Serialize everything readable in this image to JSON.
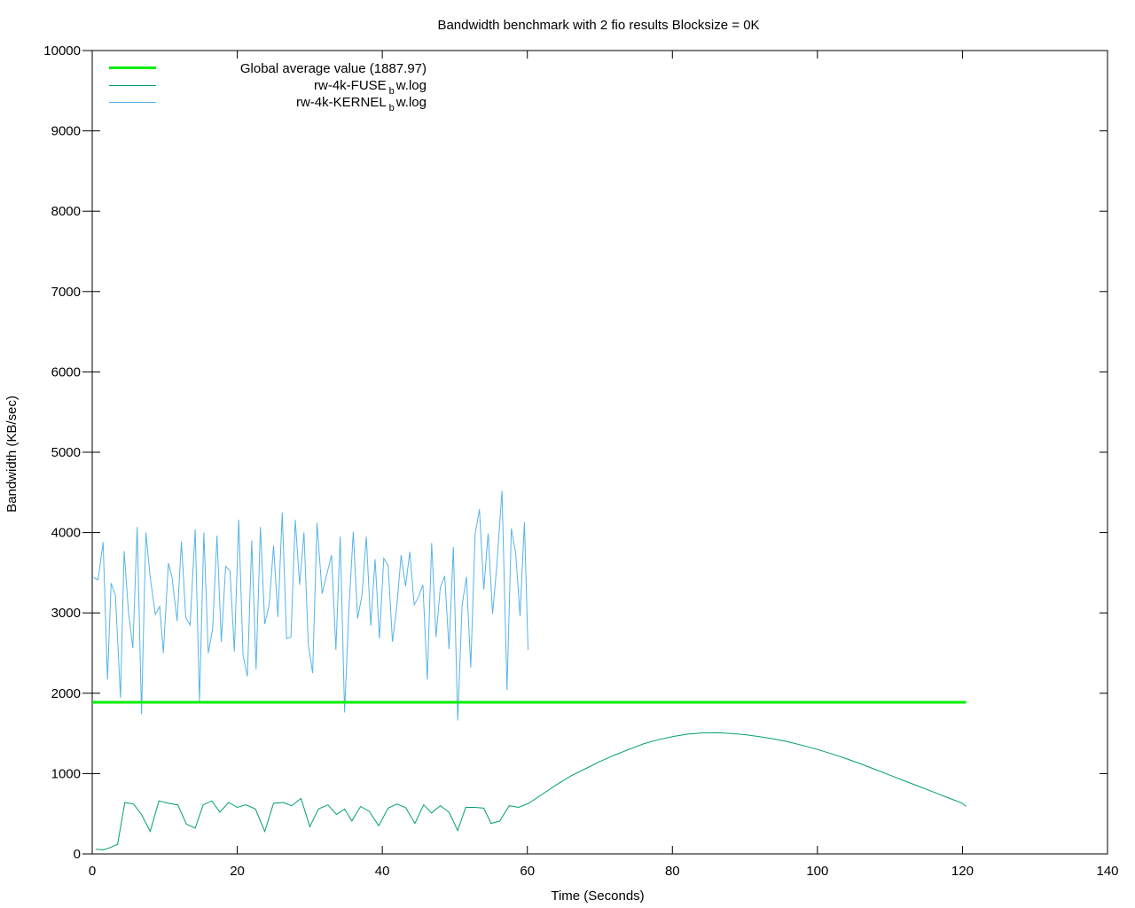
{
  "chart_data": {
    "type": "line",
    "title": "Bandwidth benchmark with 2 fio results Blocksize = 0K",
    "xlabel": "Time (Seconds)",
    "ylabel": "Bandwidth (KB/sec)",
    "xlim": [
      0,
      140
    ],
    "ylim": [
      0,
      10000
    ],
    "x_ticks": [
      0,
      20,
      40,
      60,
      80,
      100,
      120,
      140
    ],
    "y_ticks": [
      0,
      1000,
      2000,
      3000,
      4000,
      5000,
      6000,
      7000,
      8000,
      9000,
      10000
    ],
    "grid": false,
    "legend_position": "top-left",
    "colors": {
      "average": "#00ee00",
      "fuse": "#009e73",
      "kernel": "#56b4e9"
    },
    "average": {
      "label": "Global average value (1887.97)",
      "value": 1887.97,
      "x_range": [
        0,
        120.5
      ]
    },
    "series": [
      {
        "name": "rw-4k-FUSE",
        "name_sub": "b",
        "name_suffix": "w.log",
        "color": "#009e73",
        "points": [
          [
            0.5,
            60
          ],
          [
            1.5,
            50
          ],
          [
            2.5,
            80
          ],
          [
            3.5,
            120
          ],
          [
            4.5,
            640
          ],
          [
            5.7,
            620
          ],
          [
            6.8,
            490
          ],
          [
            8,
            280
          ],
          [
            9.2,
            660
          ],
          [
            10.5,
            630
          ],
          [
            11.8,
            610
          ],
          [
            13,
            370
          ],
          [
            14.2,
            320
          ],
          [
            15.3,
            610
          ],
          [
            16.5,
            660
          ],
          [
            17.6,
            520
          ],
          [
            18.8,
            640
          ],
          [
            20,
            580
          ],
          [
            21.2,
            610
          ],
          [
            22.5,
            560
          ],
          [
            23.8,
            280
          ],
          [
            25,
            630
          ],
          [
            26.3,
            640
          ],
          [
            27.5,
            600
          ],
          [
            28.8,
            690
          ],
          [
            30,
            340
          ],
          [
            31.2,
            560
          ],
          [
            32.5,
            610
          ],
          [
            33.7,
            490
          ],
          [
            34.8,
            560
          ],
          [
            35.8,
            410
          ],
          [
            37,
            590
          ],
          [
            38.2,
            530
          ],
          [
            39.5,
            350
          ],
          [
            40.8,
            570
          ],
          [
            42,
            620
          ],
          [
            43.2,
            580
          ],
          [
            44.5,
            380
          ],
          [
            45.7,
            610
          ],
          [
            46.8,
            510
          ],
          [
            48,
            600
          ],
          [
            49.2,
            520
          ],
          [
            50.4,
            290
          ],
          [
            51.5,
            580
          ],
          [
            52.8,
            580
          ],
          [
            54,
            570
          ],
          [
            55,
            380
          ],
          [
            56.2,
            410
          ],
          [
            57.5,
            600
          ],
          [
            58.8,
            580
          ],
          [
            60.2,
            630
          ],
          [
            62,
            740
          ],
          [
            64,
            860
          ],
          [
            66,
            970
          ],
          [
            68,
            1060
          ],
          [
            70,
            1150
          ],
          [
            72,
            1230
          ],
          [
            74,
            1300
          ],
          [
            76,
            1370
          ],
          [
            78,
            1420
          ],
          [
            80,
            1460
          ],
          [
            82,
            1490
          ],
          [
            84,
            1505
          ],
          [
            86,
            1510
          ],
          [
            88,
            1500
          ],
          [
            90,
            1485
          ],
          [
            92,
            1460
          ],
          [
            94,
            1430
          ],
          [
            96,
            1395
          ],
          [
            98,
            1350
          ],
          [
            100,
            1300
          ],
          [
            102,
            1245
          ],
          [
            104,
            1185
          ],
          [
            106,
            1120
          ],
          [
            108,
            1050
          ],
          [
            110,
            980
          ],
          [
            112,
            910
          ],
          [
            114,
            840
          ],
          [
            116,
            770
          ],
          [
            118,
            700
          ],
          [
            120,
            630
          ],
          [
            120.5,
            590
          ]
        ]
      },
      {
        "name": "rw-4k-KERNEL",
        "name_sub": "b",
        "name_suffix": "w.log",
        "color": "#56b4e9",
        "points": [
          [
            0.2,
            3440
          ],
          [
            0.8,
            3410
          ],
          [
            1.5,
            3880
          ],
          [
            2.1,
            2170
          ],
          [
            2.6,
            3370
          ],
          [
            3.2,
            3220
          ],
          [
            3.9,
            1940
          ],
          [
            4.4,
            3770
          ],
          [
            5,
            3010
          ],
          [
            5.6,
            2560
          ],
          [
            6.2,
            4070
          ],
          [
            6.8,
            1740
          ],
          [
            7.4,
            4000
          ],
          [
            8,
            3440
          ],
          [
            8.7,
            2980
          ],
          [
            9.3,
            3080
          ],
          [
            9.8,
            2500
          ],
          [
            10.5,
            3620
          ],
          [
            11,
            3440
          ],
          [
            11.7,
            2900
          ],
          [
            12.3,
            3890
          ],
          [
            12.9,
            2940
          ],
          [
            13.5,
            2850
          ],
          [
            14.2,
            4040
          ],
          [
            14.8,
            1900
          ],
          [
            15.4,
            4000
          ],
          [
            16,
            2500
          ],
          [
            16.6,
            2800
          ],
          [
            17.2,
            3960
          ],
          [
            17.8,
            2640
          ],
          [
            18.4,
            3580
          ],
          [
            19,
            3520
          ],
          [
            19.6,
            2520
          ],
          [
            20.2,
            4160
          ],
          [
            20.8,
            2470
          ],
          [
            21.4,
            2210
          ],
          [
            22,
            3900
          ],
          [
            22.6,
            2300
          ],
          [
            23.2,
            4070
          ],
          [
            23.8,
            2860
          ],
          [
            24.4,
            3100
          ],
          [
            25,
            3840
          ],
          [
            25.6,
            2950
          ],
          [
            26.2,
            4250
          ],
          [
            26.8,
            2680
          ],
          [
            27.4,
            2700
          ],
          [
            28,
            4160
          ],
          [
            28.6,
            3350
          ],
          [
            29.2,
            4000
          ],
          [
            29.8,
            2610
          ],
          [
            30.4,
            2250
          ],
          [
            31,
            4120
          ],
          [
            31.7,
            3240
          ],
          [
            32.4,
            3500
          ],
          [
            33,
            3720
          ],
          [
            33.6,
            2540
          ],
          [
            34.2,
            3950
          ],
          [
            34.8,
            1760
          ],
          [
            35.4,
            3050
          ],
          [
            36,
            4010
          ],
          [
            36.6,
            2930
          ],
          [
            37.2,
            3220
          ],
          [
            37.8,
            3950
          ],
          [
            38.4,
            2840
          ],
          [
            39,
            3670
          ],
          [
            39.6,
            2680
          ],
          [
            40.2,
            3680
          ],
          [
            40.8,
            3590
          ],
          [
            41.4,
            2640
          ],
          [
            42,
            3080
          ],
          [
            42.6,
            3720
          ],
          [
            43.2,
            3330
          ],
          [
            43.8,
            3760
          ],
          [
            44.4,
            3100
          ],
          [
            45,
            3200
          ],
          [
            45.6,
            3350
          ],
          [
            46.2,
            2170
          ],
          [
            46.8,
            3870
          ],
          [
            47.4,
            2700
          ],
          [
            48,
            3320
          ],
          [
            48.6,
            3460
          ],
          [
            49.2,
            2550
          ],
          [
            49.8,
            3820
          ],
          [
            50.4,
            1660
          ],
          [
            51,
            3090
          ],
          [
            51.6,
            3450
          ],
          [
            52.2,
            2320
          ],
          [
            52.8,
            3980
          ],
          [
            53.4,
            4290
          ],
          [
            54,
            3290
          ],
          [
            54.6,
            3990
          ],
          [
            55.2,
            2990
          ],
          [
            55.8,
            3600
          ],
          [
            56.5,
            4520
          ],
          [
            57.2,
            2040
          ],
          [
            57.8,
            4050
          ],
          [
            58.4,
            3740
          ],
          [
            59,
            2960
          ],
          [
            59.6,
            4130
          ],
          [
            60.1,
            2540
          ]
        ]
      }
    ]
  }
}
